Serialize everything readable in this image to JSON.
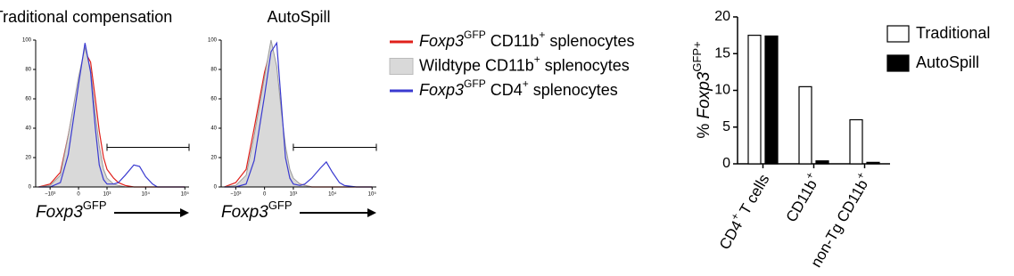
{
  "chart_data": [
    {
      "type": "histogram-line",
      "title": "Traditional compensation",
      "xlabel": [
        {
          "t": "Foxp3",
          "i": true
        },
        {
          "t": "GFP",
          "sup": true
        }
      ],
      "x": [
        -2000,
        -1000,
        -500,
        -250,
        0,
        150,
        300,
        450,
        600,
        800,
        1000,
        1500,
        2000,
        3000,
        5000,
        7000,
        10000,
        15000,
        20000,
        40000,
        100000
      ],
      "xscale": "arcsinh",
      "xlim": [
        -2400,
        128000
      ],
      "xticks": [
        {
          "value": -1000,
          "label": "−10³"
        },
        0,
        {
          "value": 1000,
          "label": "10³"
        },
        {
          "value": 10000,
          "label": "10⁴"
        },
        {
          "value": 100000,
          "label": "10⁵"
        }
      ],
      "ylim": [
        0,
        100
      ],
      "yticks": [
        0,
        20,
        40,
        60,
        80,
        100
      ],
      "gate": {
        "x": [
          1000,
          128000
        ],
        "y": 27
      },
      "legend": true,
      "series": [
        {
          "name": [
            {
              "t": "Foxp3",
              "i": true
            },
            {
              "t": "GFP",
              "sup": true
            },
            {
              "t": " CD11b"
            },
            {
              "t": "+",
              "sup": true
            },
            {
              "t": " splenocytes"
            }
          ],
          "color": "#e0201b",
          "values": [
            0,
            2,
            10,
            35,
            72,
            92,
            85,
            60,
            38,
            20,
            12,
            6,
            3,
            1,
            0,
            0,
            0,
            0,
            0,
            0,
            0
          ]
        },
        {
          "name": [
            {
              "t": "Wildtype CD11b"
            },
            {
              "t": "+",
              "sup": true
            },
            {
              "t": " splenocytes"
            }
          ],
          "color": "#9a9a9a",
          "fill": "#d9d9d9",
          "values": [
            0,
            1,
            8,
            35,
            75,
            95,
            80,
            50,
            28,
            12,
            6,
            2,
            1,
            0,
            0,
            0,
            0,
            0,
            0,
            0,
            0
          ]
        },
        {
          "name": [
            {
              "t": "Foxp3",
              "i": true
            },
            {
              "t": "GFP",
              "sup": true
            },
            {
              "t": " CD4"
            },
            {
              "t": "+",
              "sup": true
            },
            {
              "t": " splenocytes"
            }
          ],
          "color": "#3a3ad0",
          "values": [
            0,
            0,
            3,
            22,
            70,
            98,
            78,
            40,
            15,
            5,
            2,
            2,
            3,
            8,
            15,
            14,
            7,
            2,
            0,
            0,
            0
          ]
        }
      ]
    },
    {
      "type": "histogram-line",
      "title": "AutoSpill",
      "xlabel": [
        {
          "t": "Foxp3",
          "i": true
        },
        {
          "t": "GFP",
          "sup": true
        }
      ],
      "x": [
        -2000,
        -1000,
        -500,
        -250,
        0,
        150,
        300,
        450,
        600,
        800,
        1000,
        1500,
        2000,
        3000,
        5000,
        7000,
        10000,
        15000,
        20000,
        40000,
        100000
      ],
      "xscale": "arcsinh",
      "xlim": [
        -2400,
        128000
      ],
      "xticks": [
        {
          "value": -1000,
          "label": "−10³"
        },
        0,
        {
          "value": 1000,
          "label": "10³"
        },
        {
          "value": 10000,
          "label": "10⁴"
        },
        {
          "value": 100000,
          "label": "10⁵"
        }
      ],
      "ylim": [
        0,
        100
      ],
      "yticks": [
        0,
        20,
        40,
        60,
        80,
        100
      ],
      "gate": {
        "x": [
          1000,
          128000
        ],
        "y": 27
      },
      "legend": false,
      "series": [
        {
          "color": "#e0201b",
          "values": [
            0,
            3,
            12,
            40,
            78,
            95,
            80,
            48,
            25,
            10,
            5,
            2,
            1,
            0,
            0,
            0,
            0,
            0,
            0,
            0,
            0
          ]
        },
        {
          "color": "#9a9a9a",
          "fill": "#d9d9d9",
          "values": [
            0,
            1,
            8,
            35,
            75,
            100,
            82,
            50,
            28,
            12,
            6,
            2,
            1,
            0,
            0,
            0,
            0,
            0,
            0,
            0,
            0
          ]
        },
        {
          "color": "#3a3ad0",
          "values": [
            0,
            0,
            2,
            18,
            62,
            92,
            98,
            55,
            20,
            6,
            2,
            1,
            2,
            6,
            13,
            17,
            10,
            3,
            1,
            0,
            0
          ]
        }
      ]
    },
    {
      "type": "bar",
      "ylabel": [
        {
          "t": "% "
        },
        {
          "t": "Foxp3",
          "i": true
        },
        {
          "t": "GFP+",
          "sup": true
        }
      ],
      "categories": [
        [
          {
            "t": "CD4"
          },
          {
            "t": "+",
            "sup": true
          },
          {
            "t": " T cells"
          }
        ],
        [
          {
            "t": "CD11b"
          },
          {
            "t": "+",
            "sup": true
          }
        ],
        [
          {
            "t": "non-Tg CD11b"
          },
          {
            "t": "+",
            "sup": true
          }
        ]
      ],
      "ylim": [
        0,
        20
      ],
      "yticks": [
        0,
        5,
        10,
        15,
        20
      ],
      "series": [
        {
          "name": "Traditional",
          "color": "#ffffff",
          "values": [
            17.5,
            10.5,
            6
          ]
        },
        {
          "name": "AutoSpill",
          "color": "#000000",
          "values": [
            17.4,
            0.4,
            0.2
          ]
        }
      ]
    }
  ]
}
